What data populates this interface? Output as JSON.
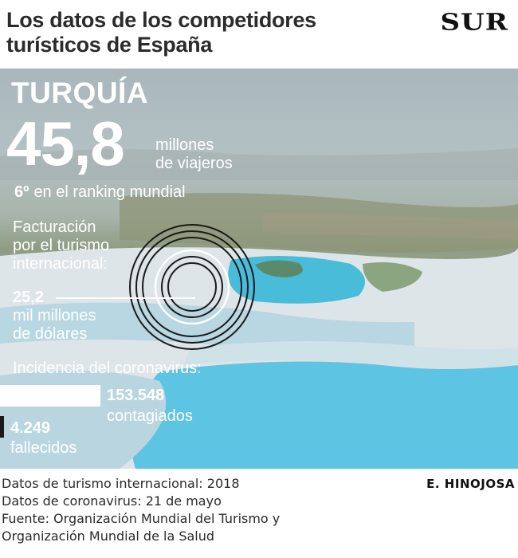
{
  "header": {
    "title_line1": "Los datos de los competidores",
    "title_line2": "turísticos de España",
    "logo": "SUR"
  },
  "country": {
    "name": "TURQUÍA",
    "travelers_value": "45,8",
    "travelers_unit_line1": "millones",
    "travelers_unit_line2": "de viajeros",
    "rank_value": "6º",
    "rank_label": "en el ranking mundial",
    "revenue_label_lines": [
      "Facturación",
      "por el turismo",
      "internacional:"
    ],
    "revenue_value": "25,2",
    "revenue_unit_line1": "mil millones",
    "revenue_unit_line2": "de dólares"
  },
  "covid": {
    "title": "Incidencia del coronavirus:",
    "cases_value": "153.548",
    "cases_label": "contagiados",
    "deaths_value": "4.249",
    "deaths_label": "fallecidos"
  },
  "footer": {
    "lines": [
      "Datos de turismo internacional: 2018",
      "Datos de coronavirus: 21 de mayo",
      "Fuente: Organización Mundial del Turismo y",
      "Organización Mundial de la Salud"
    ],
    "author": "E. HINOJOSA"
  },
  "colors": {
    "text_on_photo": "#ffffff",
    "title": "#2b2b2b",
    "deaths_bar": "#1a1a1a",
    "water": "#7fc6e0"
  }
}
